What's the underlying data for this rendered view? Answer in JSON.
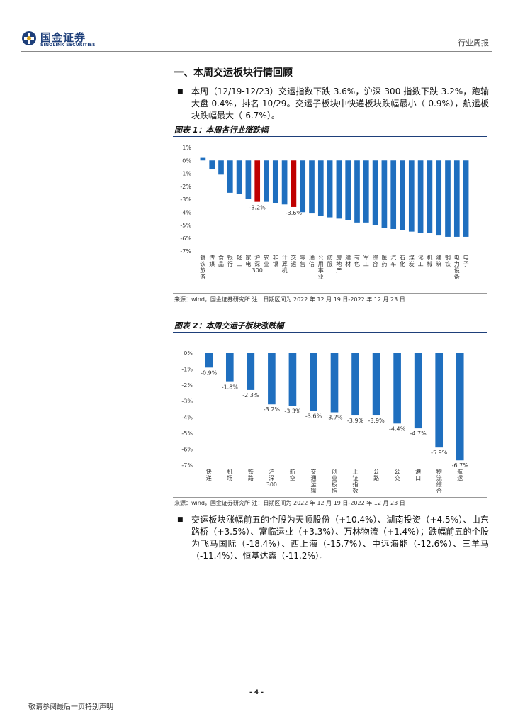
{
  "header": {
    "logo_cn": "国金证券",
    "logo_en": "SINOLINK SECURITIES",
    "report_type": "行业周报"
  },
  "section": {
    "title": "一、本周交运板块行情回顾",
    "para1": "本周（12/19-12/23）交运指数下跌 3.6%，沪深 300 指数下跌 3.2%，跑输大盘 0.4%，排名 10/29。交运子板块中快递板块跌幅最小（-0.9%），航运板块跌幅最大（-6.7%）。",
    "para2": "交运板块涨幅前五的个股为天顺股份（+10.4%）、湖南投资（+4.5%）、山东路桥（+3.5%）、富临运业（+3.3%）、万林物流（+1.4%）；跌幅前五的个股为飞马国际（-18.4%）、西上海（-15.7%）、中远海能（-12.6%）、三羊马（-11.4%）、恒基达鑫（-11.2%）。"
  },
  "figure1": {
    "title": "图表 1：本周各行业涨跌幅",
    "source": "来源：wind，国金证券研究所 注：日期区间为 2022 年 12 月 19 日-2022 年 12 月 23 日"
  },
  "figure2": {
    "title": "图表 2：本周交运子板块涨跌幅",
    "source": "来源：wind，国金证券研究所 注：日期区间为 2022 年 12 月 19 日-2022 年 12 月 23 日"
  },
  "footer": {
    "page": "- 4 -",
    "disclaimer": "敬请参阅最后一页特别声明"
  },
  "colors": {
    "bar": "#1f6fbf",
    "highlight": "#c00000",
    "brand": "#1e3f7a"
  },
  "chart_data": [
    {
      "type": "bar",
      "title": "本周各行业涨跌幅",
      "categories": [
        "餐饮旅游",
        "传媒",
        "食品",
        "银行",
        "轻工",
        "家电",
        "沪深300",
        "农业",
        "非银",
        "计算机",
        "交运",
        "零售",
        "通信",
        "公用事业",
        "纺服",
        "房地产",
        "建材",
        "有色",
        "军工",
        "综合",
        "医药",
        "汽车",
        "石化",
        "煤炭",
        "化工",
        "机械",
        "建筑",
        "钢铁",
        "电力设备",
        "电子"
      ],
      "values": [
        0.2,
        -0.7,
        -1.1,
        -2.5,
        -2.6,
        -3.0,
        -3.2,
        -3.2,
        -3.3,
        -3.4,
        -3.6,
        -4.0,
        -4.1,
        -4.3,
        -4.4,
        -4.5,
        -4.6,
        -4.8,
        -4.8,
        -5.0,
        -5.2,
        -5.3,
        -5.4,
        -5.5,
        -5.6,
        -5.6,
        -5.8,
        -5.9,
        -5.9,
        -5.9
      ],
      "highlighted": [
        "沪深300",
        "交运"
      ],
      "labels": {
        "沪深300": "-3.2%",
        "交运": "-3.6%"
      },
      "ylim": [
        -7,
        1
      ],
      "yticks": [
        "1%",
        "0%",
        "-1%",
        "-2%",
        "-3%",
        "-4%",
        "-5%",
        "-6%",
        "-7%"
      ],
      "xlabel": "",
      "ylabel": ""
    },
    {
      "type": "bar",
      "title": "本周交运子板块涨跌幅",
      "categories": [
        "快递",
        "机场",
        "铁路",
        "沪深300",
        "航空",
        "交通运输",
        "创业板指",
        "上证指数",
        "公路",
        "公交",
        "港口",
        "物流综合",
        "航运"
      ],
      "values": [
        -0.9,
        -1.8,
        -2.3,
        -3.2,
        -3.3,
        -3.6,
        -3.7,
        -3.9,
        -3.9,
        -4.4,
        -4.7,
        -5.9,
        -6.7
      ],
      "labels": [
        "-0.9%",
        "-1.8%",
        "-2.3%",
        "-3.2%",
        "-3.3%",
        "-3.6%",
        "-3.7%",
        "-3.9%",
        "-3.9%",
        "-4.4%",
        "-4.7%",
        "-5.9%",
        "-6.7%"
      ],
      "ylim": [
        -7,
        0
      ],
      "yticks": [
        "0%",
        "-1%",
        "-2%",
        "-3%",
        "-4%",
        "-5%",
        "-6%",
        "-7%"
      ],
      "xlabel": "",
      "ylabel": ""
    }
  ]
}
